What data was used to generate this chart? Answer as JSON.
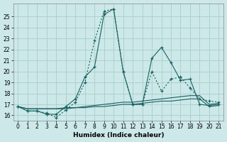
{
  "xlabel": "Humidex (Indice chaleur)",
  "background_color": "#cce8e8",
  "grid_color": "#aacccc",
  "line_color": "#1a6060",
  "xlim": [
    -0.5,
    21.5
  ],
  "ylim": [
    15.5,
    26.2
  ],
  "xticks": [
    0,
    1,
    2,
    3,
    4,
    5,
    6,
    7,
    8,
    9,
    10,
    11,
    12,
    13,
    14,
    15,
    16,
    17,
    18,
    19,
    20,
    21
  ],
  "yticks": [
    16,
    17,
    18,
    19,
    20,
    21,
    22,
    23,
    24,
    25
  ],
  "line1_x": [
    0,
    1,
    2,
    3,
    4,
    5,
    6,
    7,
    8,
    9,
    10,
    11,
    12,
    13,
    14,
    15,
    16,
    17,
    18,
    19,
    20,
    21
  ],
  "line1_y": [
    16.8,
    16.4,
    16.4,
    16.1,
    16.1,
    16.8,
    17.5,
    19.5,
    20.4,
    25.2,
    25.7,
    20.0,
    17.0,
    17.0,
    21.2,
    22.2,
    20.8,
    19.2,
    19.3,
    17.0,
    16.9,
    17.0
  ],
  "line2_x": [
    0,
    1,
    2,
    3,
    4,
    5,
    6,
    7,
    8,
    9,
    10,
    11,
    12,
    13,
    14,
    15,
    16,
    17,
    18,
    19,
    20,
    21
  ],
  "line2_y": [
    16.8,
    16.4,
    16.4,
    16.2,
    15.8,
    16.5,
    17.2,
    19.0,
    22.8,
    25.5,
    25.7,
    20.0,
    17.0,
    17.0,
    20.0,
    18.2,
    19.3,
    19.5,
    18.5,
    17.5,
    17.3,
    17.2
  ],
  "line3_x": [
    0,
    1,
    2,
    3,
    4,
    5,
    6,
    7,
    8,
    9,
    10,
    11,
    12,
    13,
    14,
    15,
    16,
    17,
    18,
    19,
    20,
    21
  ],
  "line3_y": [
    16.8,
    16.6,
    16.6,
    16.6,
    16.6,
    16.7,
    16.7,
    16.8,
    16.9,
    17.0,
    17.1,
    17.2,
    17.2,
    17.3,
    17.4,
    17.5,
    17.6,
    17.7,
    17.8,
    17.8,
    17.0,
    17.1
  ],
  "line4_x": [
    0,
    1,
    2,
    3,
    4,
    5,
    6,
    7,
    8,
    9,
    10,
    11,
    12,
    13,
    14,
    15,
    16,
    17,
    18,
    19,
    20,
    21
  ],
  "line4_y": [
    16.8,
    16.6,
    16.6,
    16.6,
    16.6,
    16.6,
    16.7,
    16.7,
    16.8,
    16.8,
    16.9,
    17.0,
    17.0,
    17.1,
    17.2,
    17.3,
    17.3,
    17.4,
    17.5,
    17.5,
    16.8,
    16.9
  ]
}
